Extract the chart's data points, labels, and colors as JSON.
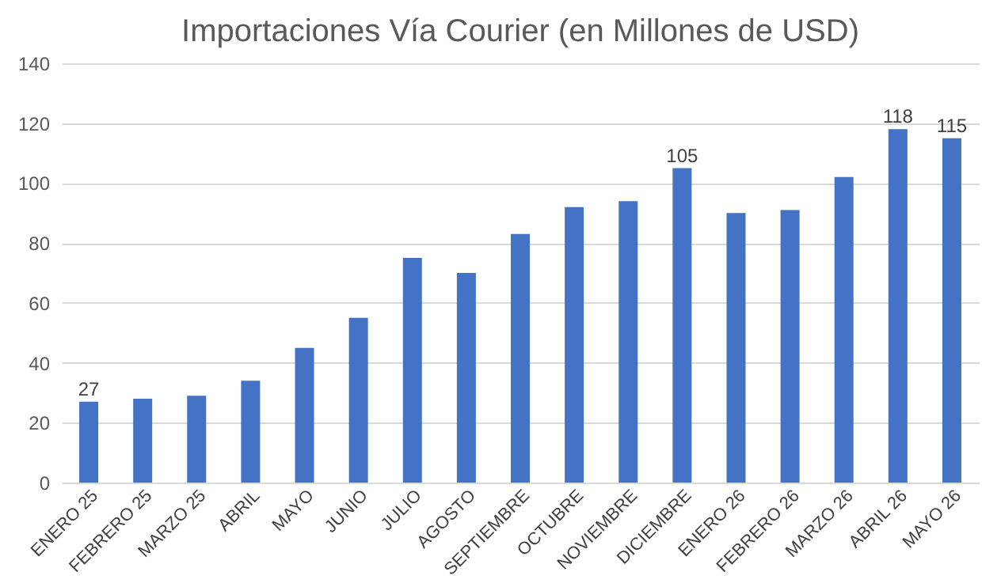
{
  "chart_data": {
    "type": "bar",
    "title": "Importaciones Vía Courier  (en Millones de USD)",
    "categories": [
      "ENERO 25",
      "FEBRERO 25",
      "MARZO 25",
      "ABRIL",
      "MAYO",
      "JUNIO",
      "JULIO",
      "AGOSTO",
      "SEPTIEMBRE",
      "OCTUBRE",
      "NOVIEMBRE",
      "DICIEMBRE",
      "ENERO 26",
      "FEBRERO 26",
      "MARZO 26",
      "ABRIL 26",
      "MAYO 26"
    ],
    "values": [
      27,
      28,
      29,
      34,
      45,
      55,
      75,
      70,
      83,
      92,
      94,
      105,
      90,
      91,
      102,
      118,
      115
    ],
    "value_labels": [
      "27",
      null,
      null,
      null,
      null,
      null,
      null,
      null,
      null,
      null,
      null,
      "105",
      null,
      null,
      null,
      "118",
      "115"
    ],
    "color": "#4472c4",
    "ylim": [
      0,
      140
    ],
    "yticks": [
      0,
      20,
      40,
      60,
      80,
      100,
      120,
      140
    ],
    "grid": "y"
  }
}
